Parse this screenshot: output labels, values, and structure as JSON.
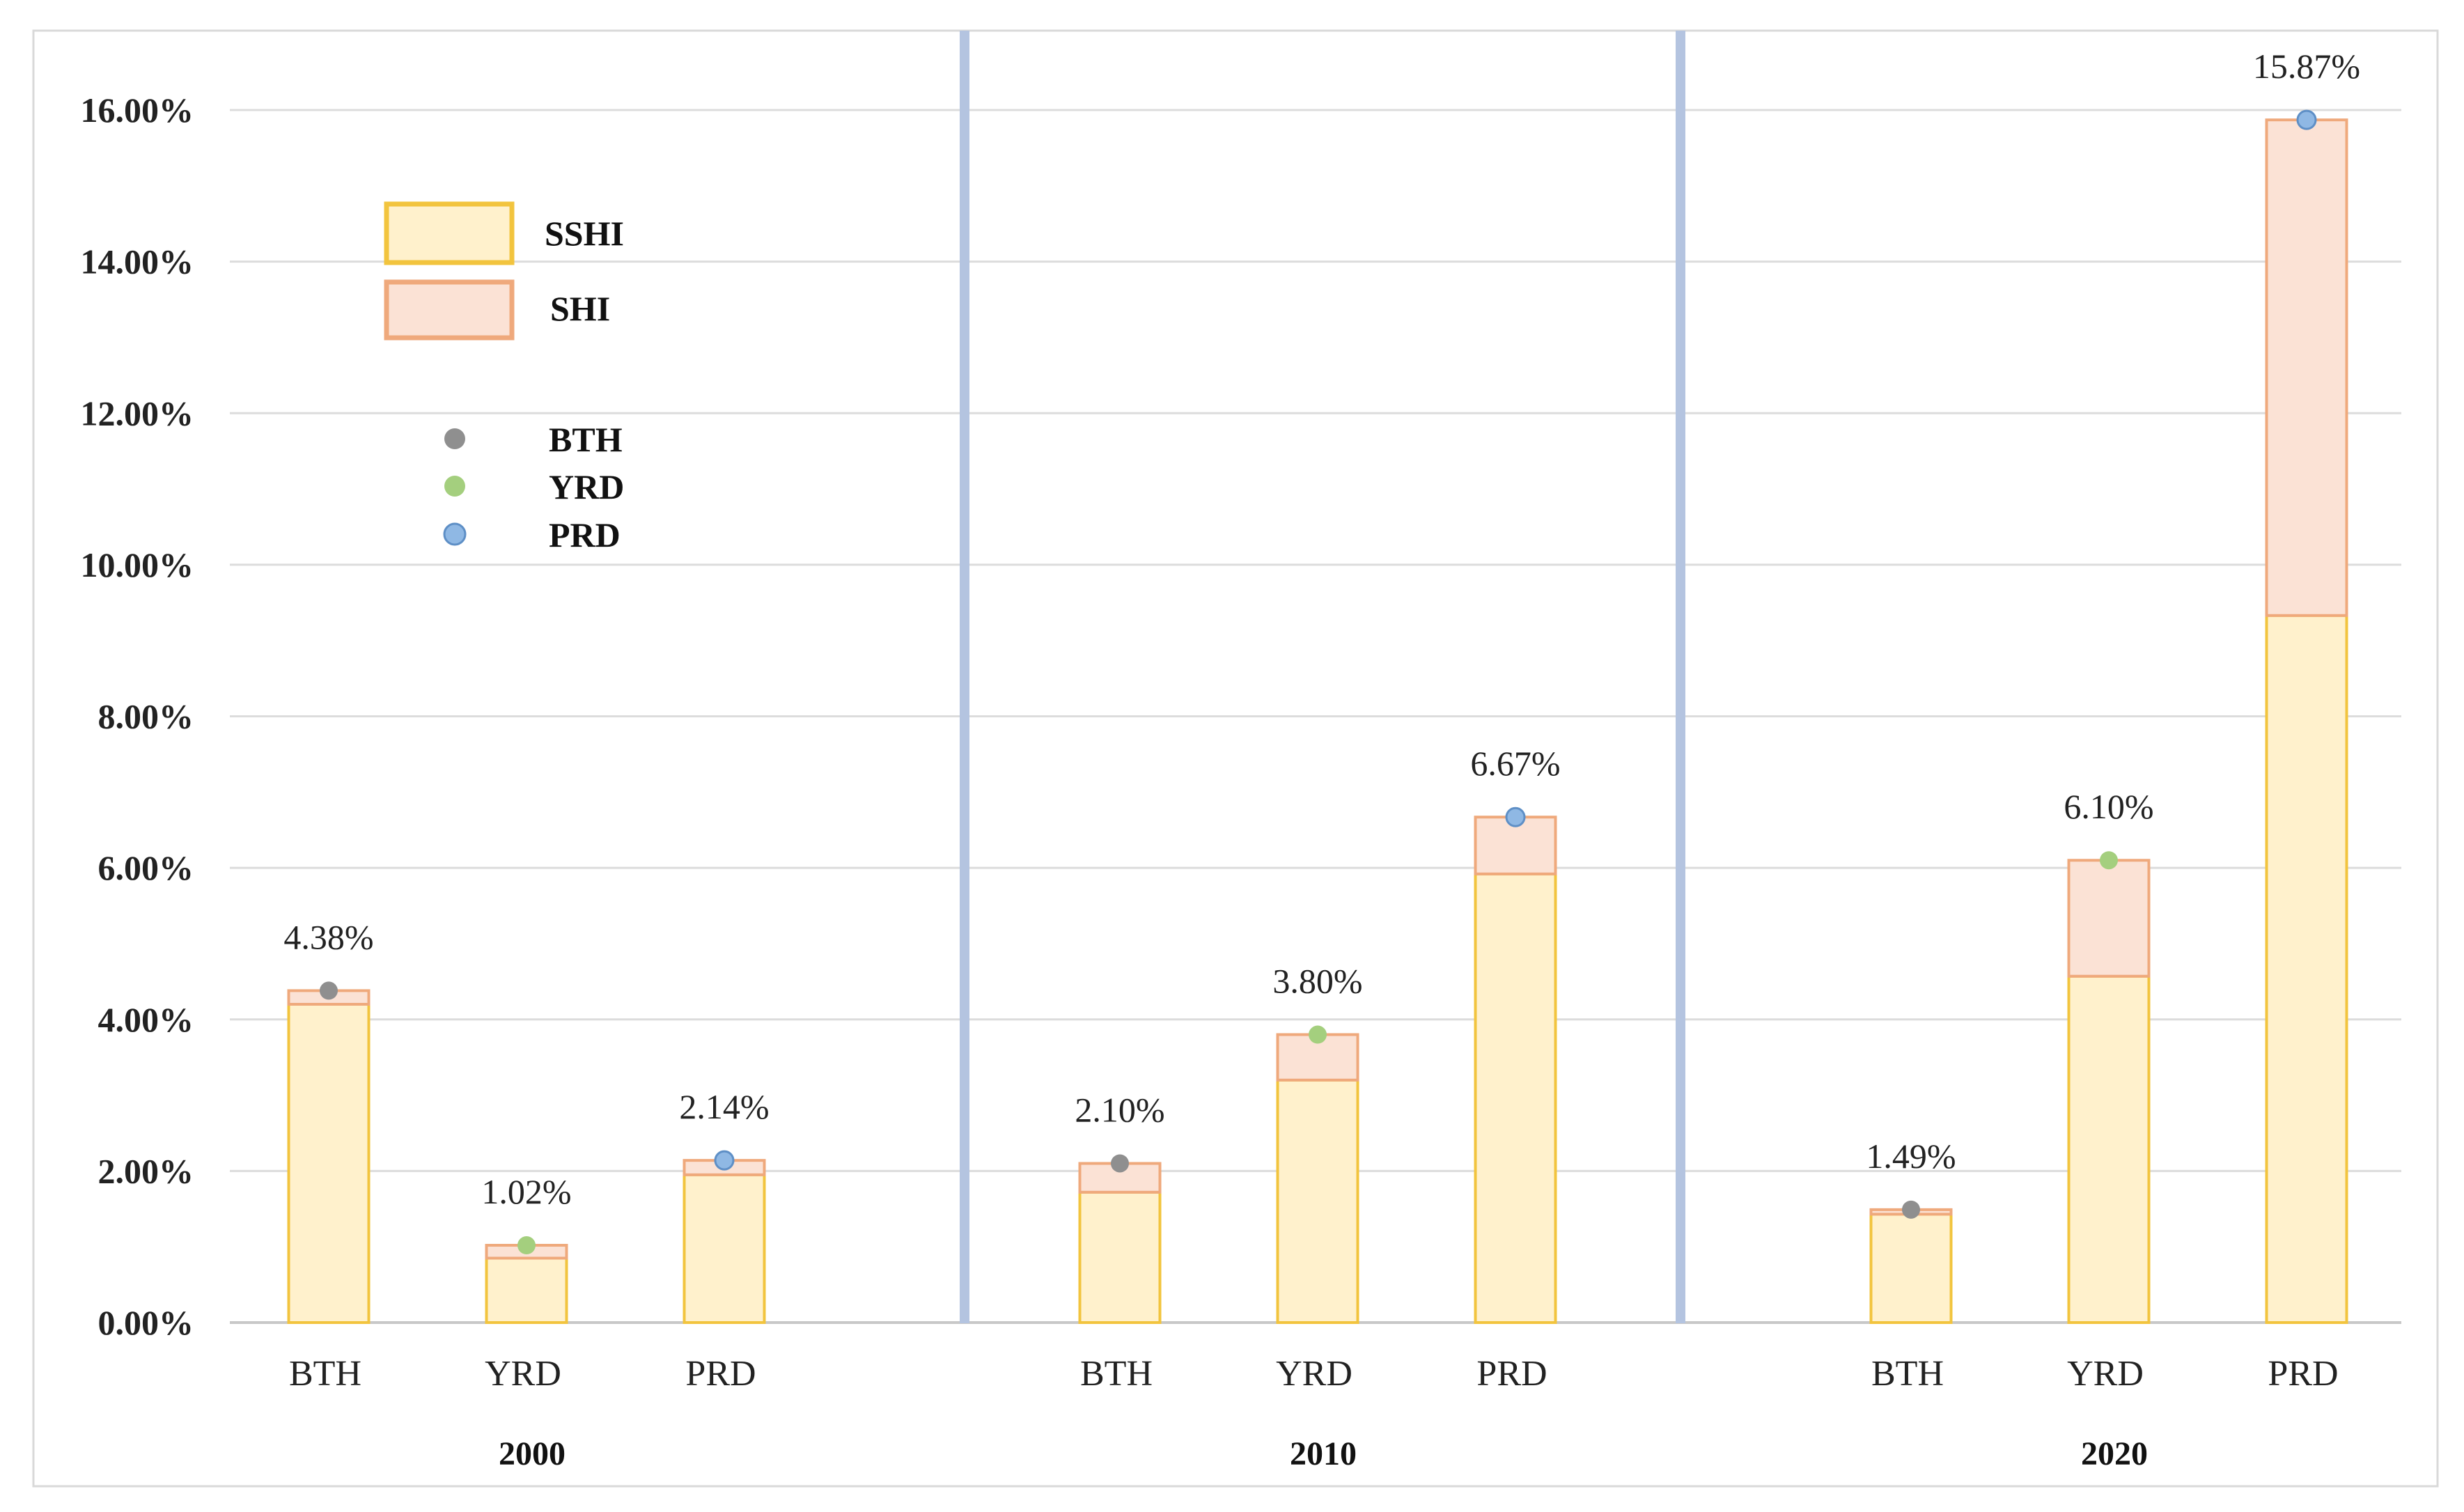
{
  "chart_data": {
    "type": "bar",
    "stacked": true,
    "title": "",
    "xlabel": "",
    "ylabel": "",
    "ylim": [
      0,
      16
    ],
    "y_ticks": [
      "0.00%",
      "2.00%",
      "4.00%",
      "6.00%",
      "8.00%",
      "10.00%",
      "12.00%",
      "14.00%",
      "16.00%"
    ],
    "grid": true,
    "legend_position": "top-left",
    "groups": [
      "2000",
      "2010",
      "2020"
    ],
    "categories": [
      "BTH",
      "YRD",
      "PRD"
    ],
    "series": [
      {
        "name": "SSHI",
        "color_fill": "#fff1cc",
        "color_edge": "#f2c43e",
        "values": [
          [
            4.2,
            0.85,
            1.95
          ],
          [
            1.72,
            3.2,
            5.92
          ],
          [
            1.43,
            4.57,
            9.33
          ]
        ]
      },
      {
        "name": "SHI",
        "color_fill": "#fbe2d5",
        "color_edge": "#efa97c",
        "values": [
          [
            0.18,
            0.17,
            0.19
          ],
          [
            0.38,
            0.6,
            0.75
          ],
          [
            0.06,
            1.53,
            6.54
          ]
        ]
      }
    ],
    "totals": [
      [
        4.38,
        1.02,
        2.14
      ],
      [
        2.1,
        3.8,
        6.67
      ],
      [
        1.49,
        6.1,
        15.87
      ]
    ],
    "total_labels": [
      [
        "4.38%",
        "1.02%",
        "2.14%"
      ],
      [
        "2.10%",
        "3.80%",
        "6.67%"
      ],
      [
        "1.49%",
        "6.10%",
        "15.87%"
      ]
    ],
    "markers": [
      {
        "name": "BTH",
        "color": "#8f8f8f"
      },
      {
        "name": "YRD",
        "color": "#a4cf7e"
      },
      {
        "name": "PRD",
        "color": "#8fb8e4"
      }
    ],
    "separator_color": "#b4c4e0"
  }
}
